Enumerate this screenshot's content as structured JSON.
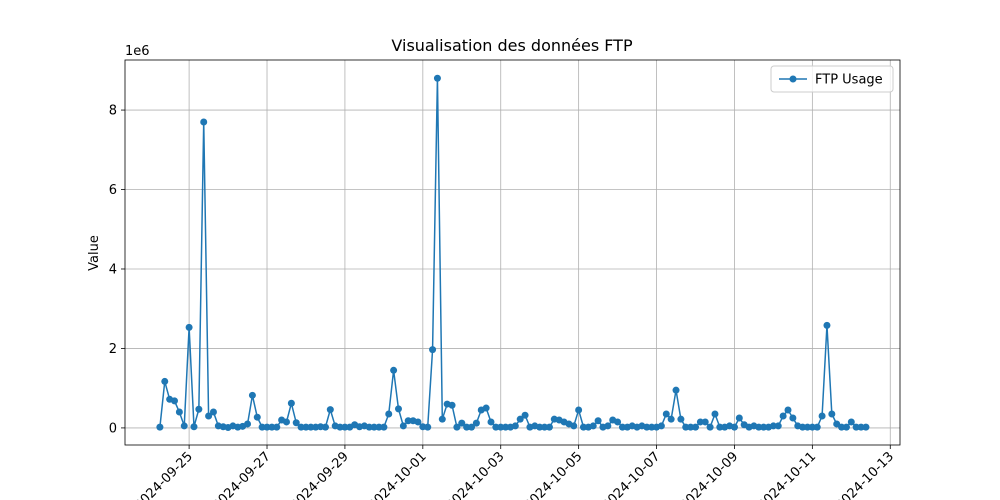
{
  "chart_data": {
    "type": "line",
    "title": "Visualisation des données FTP",
    "y_label": "Value",
    "y_offset_label": "1e6",
    "grid": true,
    "legend": "upper right",
    "marker": "circle",
    "xlim": [
      "2024-09-23 08:30",
      "2024-10-13 06:00"
    ],
    "xticks": [
      "2024-09-25",
      "2024-09-27",
      "2024-09-29",
      "2024-10-01",
      "2024-10-03",
      "2024-10-05",
      "2024-10-07",
      "2024-10-09",
      "2024-10-11",
      "2024-10-13"
    ],
    "ylim": [
      -0.43,
      9.26
    ],
    "yticks": [
      0,
      2,
      4,
      6,
      8
    ],
    "x": [
      "2024-09-24 06:00",
      "2024-09-24 09:00",
      "2024-09-24 12:00",
      "2024-09-24 15:00",
      "2024-09-24 18:00",
      "2024-09-24 21:00",
      "2024-09-25 00:00",
      "2024-09-25 03:00",
      "2024-09-25 06:00",
      "2024-09-25 09:00",
      "2024-09-25 12:00",
      "2024-09-25 15:00",
      "2024-09-25 18:00",
      "2024-09-25 21:00",
      "2024-09-26 00:00",
      "2024-09-26 03:00",
      "2024-09-26 06:00",
      "2024-09-26 09:00",
      "2024-09-26 12:00",
      "2024-09-26 15:00",
      "2024-09-26 18:00",
      "2024-09-26 21:00",
      "2024-09-27 00:00",
      "2024-09-27 03:00",
      "2024-09-27 06:00",
      "2024-09-27 09:00",
      "2024-09-27 12:00",
      "2024-09-27 15:00",
      "2024-09-27 18:00",
      "2024-09-27 21:00",
      "2024-09-28 00:00",
      "2024-09-28 03:00",
      "2024-09-28 06:00",
      "2024-09-28 09:00",
      "2024-09-28 12:00",
      "2024-09-28 15:00",
      "2024-09-28 18:00",
      "2024-09-28 21:00",
      "2024-09-29 00:00",
      "2024-09-29 03:00",
      "2024-09-29 06:00",
      "2024-09-29 09:00",
      "2024-09-29 12:00",
      "2024-09-29 15:00",
      "2024-09-29 18:00",
      "2024-09-29 21:00",
      "2024-09-30 00:00",
      "2024-09-30 03:00",
      "2024-09-30 06:00",
      "2024-09-30 09:00",
      "2024-09-30 12:00",
      "2024-09-30 15:00",
      "2024-09-30 18:00",
      "2024-09-30 21:00",
      "2024-10-01 00:00",
      "2024-10-01 03:00",
      "2024-10-01 06:00",
      "2024-10-01 09:00",
      "2024-10-01 12:00",
      "2024-10-01 15:00",
      "2024-10-01 18:00",
      "2024-10-01 21:00",
      "2024-10-02 00:00",
      "2024-10-02 03:00",
      "2024-10-02 06:00",
      "2024-10-02 09:00",
      "2024-10-02 12:00",
      "2024-10-02 15:00",
      "2024-10-02 18:00",
      "2024-10-02 21:00",
      "2024-10-03 00:00",
      "2024-10-03 03:00",
      "2024-10-03 06:00",
      "2024-10-03 09:00",
      "2024-10-03 12:00",
      "2024-10-03 15:00",
      "2024-10-03 18:00",
      "2024-10-03 21:00",
      "2024-10-04 00:00",
      "2024-10-04 03:00",
      "2024-10-04 06:00",
      "2024-10-04 09:00",
      "2024-10-04 12:00",
      "2024-10-04 15:00",
      "2024-10-04 18:00",
      "2024-10-04 21:00",
      "2024-10-05 00:00",
      "2024-10-05 03:00",
      "2024-10-05 06:00",
      "2024-10-05 09:00",
      "2024-10-05 12:00",
      "2024-10-05 15:00",
      "2024-10-05 18:00",
      "2024-10-05 21:00",
      "2024-10-06 00:00",
      "2024-10-06 03:00",
      "2024-10-06 06:00",
      "2024-10-06 09:00",
      "2024-10-06 12:00",
      "2024-10-06 15:00",
      "2024-10-06 18:00",
      "2024-10-06 21:00",
      "2024-10-07 00:00",
      "2024-10-07 03:00",
      "2024-10-07 06:00",
      "2024-10-07 09:00",
      "2024-10-07 12:00",
      "2024-10-07 15:00",
      "2024-10-07 18:00",
      "2024-10-07 21:00",
      "2024-10-08 00:00",
      "2024-10-08 03:00",
      "2024-10-08 06:00",
      "2024-10-08 09:00",
      "2024-10-08 12:00",
      "2024-10-08 15:00",
      "2024-10-08 18:00",
      "2024-10-08 21:00",
      "2024-10-09 00:00",
      "2024-10-09 03:00",
      "2024-10-09 06:00",
      "2024-10-09 09:00",
      "2024-10-09 12:00",
      "2024-10-09 15:00",
      "2024-10-09 18:00",
      "2024-10-09 21:00",
      "2024-10-10 00:00",
      "2024-10-10 03:00",
      "2024-10-10 06:00",
      "2024-10-10 09:00",
      "2024-10-10 12:00",
      "2024-10-10 15:00",
      "2024-10-10 18:00",
      "2024-10-10 21:00",
      "2024-10-11 00:00",
      "2024-10-11 03:00",
      "2024-10-11 06:00",
      "2024-10-11 09:00",
      "2024-10-11 12:00",
      "2024-10-11 15:00",
      "2024-10-11 18:00",
      "2024-10-11 21:00",
      "2024-10-12 00:00",
      "2024-10-12 03:00",
      "2024-10-12 06:00",
      "2024-10-12 09:00"
    ],
    "series": [
      {
        "name": "FTP Usage",
        "color": "#1f77b4",
        "values": [
          0.02,
          1.17,
          0.72,
          0.68,
          0.4,
          0.05,
          2.53,
          0.03,
          0.47,
          7.7,
          0.3,
          0.4,
          0.05,
          0.03,
          0.01,
          0.05,
          0.02,
          0.04,
          0.1,
          0.82,
          0.27,
          0.02,
          0.02,
          0.02,
          0.02,
          0.2,
          0.15,
          0.62,
          0.13,
          0.02,
          0.02,
          0.02,
          0.02,
          0.03,
          0.02,
          0.46,
          0.05,
          0.02,
          0.02,
          0.02,
          0.08,
          0.03,
          0.05,
          0.02,
          0.02,
          0.02,
          0.02,
          0.35,
          1.45,
          0.48,
          0.05,
          0.18,
          0.18,
          0.15,
          0.03,
          0.02,
          1.97,
          8.8,
          0.22,
          0.6,
          0.57,
          0.02,
          0.12,
          0.02,
          0.02,
          0.12,
          0.45,
          0.5,
          0.15,
          0.02,
          0.02,
          0.02,
          0.02,
          0.05,
          0.22,
          0.32,
          0.02,
          0.05,
          0.02,
          0.02,
          0.02,
          0.22,
          0.2,
          0.15,
          0.1,
          0.05,
          0.45,
          0.02,
          0.02,
          0.05,
          0.18,
          0.02,
          0.05,
          0.2,
          0.15,
          0.02,
          0.02,
          0.05,
          0.02,
          0.05,
          0.02,
          0.02,
          0.02,
          0.05,
          0.35,
          0.22,
          0.95,
          0.22,
          0.02,
          0.02,
          0.02,
          0.15,
          0.15,
          0.02,
          0.35,
          0.02,
          0.02,
          0.05,
          0.02,
          0.25,
          0.08,
          0.02,
          0.05,
          0.02,
          0.02,
          0.02,
          0.05,
          0.05,
          0.3,
          0.45,
          0.25,
          0.05,
          0.02,
          0.02,
          0.02,
          0.02,
          0.3,
          2.58,
          0.35,
          0.1,
          0.02,
          0.02,
          0.15,
          0.02,
          0.02,
          0.02
        ]
      }
    ]
  }
}
